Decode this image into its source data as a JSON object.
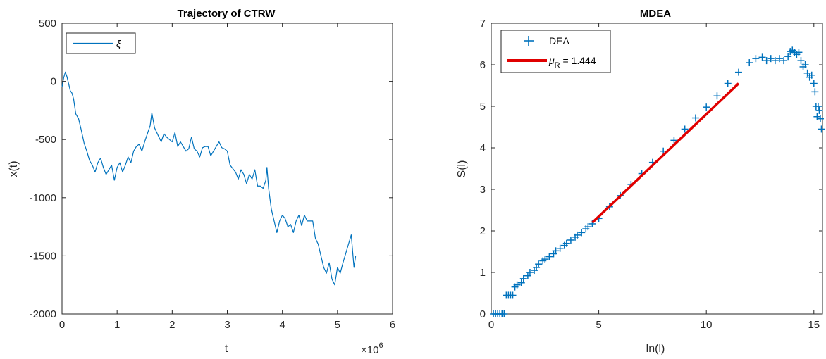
{
  "chart_data": [
    {
      "type": "line",
      "title": "Trajectory of CTRW",
      "xlabel": "t",
      "ylabel": "x(t)",
      "x_scale_label": "×10",
      "x_scale_exponent": "6",
      "xlim": [
        0,
        6
      ],
      "ylim": [
        -2000,
        500
      ],
      "xticks": [
        0,
        1,
        2,
        3,
        4,
        5,
        6
      ],
      "yticks": [
        -2000,
        -1500,
        -1000,
        -500,
        0,
        500
      ],
      "legend": {
        "position": "top-left",
        "entries": [
          "ξ"
        ]
      },
      "series_color": "#0072BD",
      "series": [
        {
          "name": "ξ",
          "x": [
            0,
            0.03,
            0.06,
            0.09,
            0.12,
            0.15,
            0.18,
            0.21,
            0.25,
            0.3,
            0.35,
            0.4,
            0.45,
            0.5,
            0.55,
            0.6,
            0.65,
            0.7,
            0.75,
            0.8,
            0.85,
            0.9,
            0.95,
            1.0,
            1.05,
            1.1,
            1.15,
            1.2,
            1.25,
            1.3,
            1.35,
            1.4,
            1.45,
            1.5,
            1.55,
            1.6,
            1.63,
            1.68,
            1.75,
            1.8,
            1.85,
            1.9,
            1.95,
            2.0,
            2.05,
            2.1,
            2.15,
            2.2,
            2.25,
            2.3,
            2.35,
            2.4,
            2.45,
            2.5,
            2.55,
            2.6,
            2.65,
            2.7,
            2.75,
            2.8,
            2.85,
            2.9,
            2.95,
            3.0,
            3.05,
            3.1,
            3.15,
            3.2,
            3.25,
            3.3,
            3.35,
            3.4,
            3.45,
            3.5,
            3.55,
            3.6,
            3.65,
            3.7,
            3.72,
            3.75,
            3.8,
            3.85,
            3.9,
            3.95,
            4.0,
            4.05,
            4.1,
            4.15,
            4.2,
            4.25,
            4.3,
            4.35,
            4.4,
            4.45,
            4.5,
            4.55,
            4.6,
            4.65,
            4.7,
            4.75,
            4.8,
            4.85,
            4.9,
            4.95,
            5.0,
            5.05,
            5.1,
            5.15,
            5.2,
            5.25,
            5.3,
            5.33
          ],
          "values": [
            -50,
            30,
            80,
            40,
            -20,
            -80,
            -100,
            -150,
            -280,
            -320,
            -420,
            -530,
            -600,
            -680,
            -720,
            -780,
            -700,
            -660,
            -740,
            -800,
            -760,
            -720,
            -850,
            -740,
            -700,
            -780,
            -720,
            -650,
            -700,
            -600,
            -560,
            -540,
            -600,
            -520,
            -450,
            -380,
            -270,
            -400,
            -470,
            -520,
            -450,
            -480,
            -500,
            -520,
            -440,
            -560,
            -520,
            -560,
            -600,
            -580,
            -480,
            -580,
            -600,
            -650,
            -570,
            -560,
            -560,
            -640,
            -600,
            -560,
            -520,
            -570,
            -580,
            -600,
            -720,
            -750,
            -780,
            -840,
            -760,
            -800,
            -880,
            -800,
            -840,
            -760,
            -900,
            -900,
            -920,
            -850,
            -740,
            -920,
            -1100,
            -1200,
            -1300,
            -1200,
            -1150,
            -1180,
            -1250,
            -1230,
            -1300,
            -1200,
            -1150,
            -1240,
            -1150,
            -1200,
            -1200,
            -1200,
            -1350,
            -1400,
            -1500,
            -1600,
            -1650,
            -1560,
            -1700,
            -1750,
            -1600,
            -1650,
            -1560,
            -1480,
            -1400,
            -1320,
            -1600,
            -1500
          ]
        }
      ]
    },
    {
      "type": "scatter",
      "title": "MDEA",
      "xlabel": "ln(l)",
      "ylabel": "S(l)",
      "xlim": [
        0,
        15.4
      ],
      "ylim": [
        0,
        7
      ],
      "xticks": [
        0,
        5,
        10,
        15
      ],
      "yticks": [
        0,
        1,
        2,
        3,
        4,
        5,
        6,
        7
      ],
      "legend": {
        "position": "top-left",
        "entries": [
          "DEA",
          "μR = 1.444"
        ]
      },
      "dea_color": "#0072BD",
      "fit_color": "#E00000",
      "series": [
        {
          "name": "DEA",
          "x": [
            0.1,
            0.2,
            0.3,
            0.4,
            0.5,
            0.6,
            0.7,
            0.8,
            0.9,
            1.0,
            1.1,
            1.2,
            1.4,
            1.5,
            1.7,
            1.8,
            2.0,
            2.1,
            2.2,
            2.4,
            2.5,
            2.7,
            2.9,
            3.0,
            3.2,
            3.4,
            3.5,
            3.7,
            3.9,
            4.0,
            4.2,
            4.4,
            4.5,
            4.7,
            5.0,
            5.5,
            6.0,
            6.5,
            7.0,
            7.5,
            8.0,
            8.5,
            9.0,
            9.5,
            10.0,
            10.5,
            11.0,
            11.5,
            12.0,
            12.3,
            12.6,
            12.8,
            13.0,
            13.2,
            13.4,
            13.6,
            13.8,
            13.9,
            14.0,
            14.1,
            14.2,
            14.3,
            14.4,
            14.5,
            14.6,
            14.7,
            14.8,
            14.9,
            15.0,
            15.05,
            15.1,
            15.15,
            15.2,
            15.25,
            15.3,
            15.35
          ],
          "values": [
            0,
            0,
            0,
            0,
            0,
            0,
            0.45,
            0.45,
            0.45,
            0.45,
            0.65,
            0.7,
            0.75,
            0.85,
            0.92,
            1.0,
            1.05,
            1.12,
            1.2,
            1.28,
            1.32,
            1.38,
            1.45,
            1.52,
            1.58,
            1.65,
            1.7,
            1.78,
            1.85,
            1.9,
            1.96,
            2.05,
            2.1,
            2.17,
            2.3,
            2.58,
            2.85,
            3.12,
            3.38,
            3.65,
            3.92,
            4.18,
            4.45,
            4.72,
            4.98,
            5.25,
            5.55,
            5.82,
            6.05,
            6.15,
            6.18,
            6.1,
            6.15,
            6.1,
            6.15,
            6.1,
            6.2,
            6.32,
            6.35,
            6.3,
            6.25,
            6.3,
            6.1,
            5.95,
            6.0,
            5.8,
            5.7,
            5.75,
            5.55,
            5.35,
            5.0,
            4.75,
            5.0,
            4.9,
            4.7,
            4.45
          ]
        },
        {
          "name": "μR = 1.444",
          "type": "line",
          "x": [
            4.7,
            11.5
          ],
          "values": [
            2.2,
            5.55
          ]
        }
      ]
    }
  ]
}
